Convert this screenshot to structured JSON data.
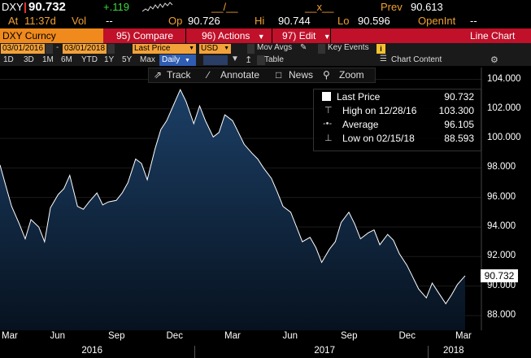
{
  "quote": {
    "ticker": "DXY",
    "last": "90.732",
    "change": "+.119",
    "dashes1": "__/__",
    "dashes2": "__x__",
    "prev_label": "Prev",
    "prev_value": "90.613",
    "at_label": "At",
    "time": "11:37d",
    "vol_label": "Vol",
    "vol_value": "--",
    "op_label": "Op",
    "op_value": "90.726",
    "hi_label": "Hi",
    "hi_value": "90.744",
    "lo_label": "Lo",
    "lo_value": "90.596",
    "openint_label": "OpenInt",
    "openint_value": "--"
  },
  "cmdbar": {
    "security": "DXY Curncy",
    "compare": "Compare",
    "compare_num": "95",
    "actions": "Actions",
    "actions_num": "96",
    "edit": "Edit",
    "edit_num": "97",
    "chart_type": "Line Chart"
  },
  "toolbar1": {
    "start_date": "03/01/2016",
    "end_date": "03/01/2018",
    "field": "Last Price",
    "currency": "USD",
    "mov_avgs": "Mov Avgs",
    "key_events": "Key Events"
  },
  "toolbar2": {
    "periods": [
      "1D",
      "3D",
      "1M",
      "6M",
      "YTD",
      "1Y",
      "5Y",
      "Max"
    ],
    "frequency": "Daily",
    "table": "Table",
    "chart_content": "Chart Content"
  },
  "hover_toolbar": {
    "track": "Track",
    "annotate": "Annotate",
    "news": "News",
    "zoom": "Zoom"
  },
  "legend": {
    "last_price_label": "Last Price",
    "last_price_value": "90.732",
    "high_label": "High on 12/28/16",
    "high_value": "103.300",
    "average_label": "Average",
    "average_value": "96.105",
    "low_label": "Low on 02/15/18",
    "low_value": "88.593"
  },
  "chart_data": {
    "type": "area",
    "ylim": [
      87,
      104.8
    ],
    "yticks": [
      "104.000",
      "102.000",
      "100.000",
      "98.000",
      "96.000",
      "94.000",
      "92.000",
      "90.000",
      "88.000"
    ],
    "ytick_values": [
      104,
      102,
      100,
      98,
      96,
      94,
      92,
      90,
      88
    ],
    "last_value_label": "90.732",
    "xticks": [
      "Mar",
      "Jun",
      "Sep",
      "Dec",
      "Mar",
      "Jun",
      "Sep",
      "Dec",
      "Mar"
    ],
    "xtick_months": [
      0,
      3,
      6,
      9,
      12,
      15,
      18,
      21,
      24
    ],
    "years": [
      "2016",
      "2017",
      "2018"
    ],
    "year_months": [
      4.8,
      16.8,
      24
    ],
    "series": [
      {
        "months": [
          0,
          0.3,
          0.6,
          1,
          1.3,
          1.6,
          2,
          2.3,
          2.6,
          3,
          3.3,
          3.6,
          4,
          4.3,
          4.6,
          5,
          5.3,
          5.6,
          6,
          6.3,
          6.6,
          7,
          7.3,
          7.6,
          8,
          8.3,
          8.6,
          9,
          9.3,
          9.6,
          10,
          10.3,
          10.6,
          11,
          11.3,
          11.6,
          12,
          12.3,
          12.6,
          13,
          13.3,
          13.6,
          14,
          14.3,
          14.6,
          15,
          15.3,
          15.6,
          16,
          16.3,
          16.6,
          17,
          17.3,
          17.6,
          18,
          18.3,
          18.6,
          19,
          19.3,
          19.6,
          20,
          20.3,
          20.6,
          21,
          21.3,
          21.6,
          22,
          22.3,
          22.6,
          23,
          23.3,
          23.6,
          24
        ],
        "values": [
          98.2,
          96.8,
          95.4,
          94.2,
          93.2,
          94.5,
          94.0,
          93.0,
          95.3,
          96.2,
          96.6,
          97.5,
          95.4,
          95.2,
          95.7,
          96.3,
          95.5,
          95.7,
          95.8,
          96.3,
          97.0,
          98.6,
          98.3,
          97.2,
          99.3,
          100.6,
          101.2,
          102.4,
          103.3,
          102.5,
          101.0,
          102.2,
          101.2,
          100.1,
          100.4,
          101.6,
          101.2,
          100.4,
          99.6,
          99.0,
          98.6,
          98.0,
          97.3,
          96.4,
          95.4,
          95.0,
          94.0,
          93.0,
          93.3,
          92.6,
          91.6,
          92.5,
          93.0,
          94.3,
          95.0,
          94.2,
          93.2,
          93.6,
          93.8,
          92.8,
          93.5,
          93.1,
          92.2,
          91.4,
          90.6,
          89.8,
          89.2,
          90.2,
          89.6,
          88.8,
          89.4,
          90.1,
          90.7
        ]
      }
    ]
  }
}
